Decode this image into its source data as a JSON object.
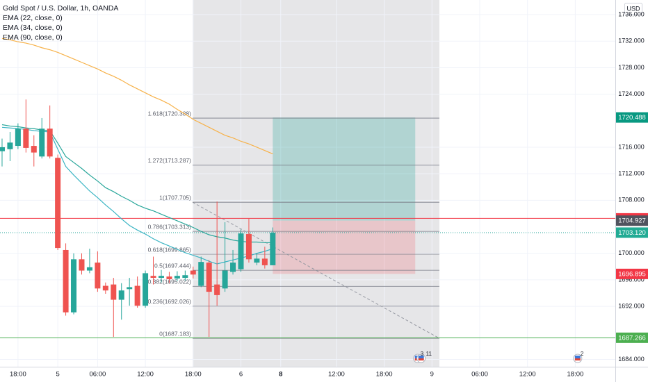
{
  "chart_data": {
    "type": "candlestick",
    "title": "Gold Spot / U.S. Dollar, 1h, OANDA",
    "currency": "USD",
    "x": [
      0,
      1,
      2,
      3,
      4,
      5,
      6,
      7,
      8,
      9,
      10,
      11,
      12,
      13,
      14,
      15,
      16,
      17,
      18,
      19,
      20,
      21,
      22,
      23,
      24,
      25,
      26,
      27,
      28,
      29,
      30,
      31,
      32,
      33,
      34
    ],
    "open": [
      1715.4,
      1715.7,
      1716.2,
      1718.8,
      1716.2,
      1714.6,
      1718.8,
      1714.4,
      1700.5,
      1691.1,
      1699.1,
      1697.4,
      1698.6,
      1695.1,
      1695.3,
      1693.0,
      1694.6,
      1695.1,
      1692.1,
      1696.6,
      1696.3,
      1696.5,
      1696.2,
      1696.3,
      1697.4,
      1695.1,
      1698.6,
      1695.3,
      1694.7,
      1697.2,
      1697.6,
      1702.9,
      1698.6,
      1699.2,
      1698.2
    ],
    "high": [
      1717.3,
      1718.3,
      1719.6,
      1723.2,
      1717.8,
      1720.4,
      1722.3,
      1714.9,
      1701.5,
      1700.0,
      1700.0,
      1700.7,
      1700.3,
      1695.6,
      1696.3,
      1695.5,
      1696.3,
      1696.5,
      1697.4,
      1699.5,
      1697.5,
      1697.2,
      1697.3,
      1697.4,
      1698.0,
      1699.5,
      1699.0,
      1707.8,
      1704.7,
      1700.5,
      1703.6,
      1705.2,
      1700.0,
      1701.0,
      1703.9
    ],
    "low": [
      1713.1,
      1713.9,
      1715.7,
      1715.2,
      1713.1,
      1714.3,
      1714.3,
      1700.5,
      1690.6,
      1690.8,
      1696.8,
      1697.0,
      1694.2,
      1693.9,
      1687.4,
      1690.0,
      1692.1,
      1691.8,
      1691.8,
      1695.3,
      1695.6,
      1695.5,
      1695.8,
      1695.9,
      1696.2,
      1694.9,
      1687.4,
      1692.1,
      1694.2,
      1696.8,
      1697.2,
      1698.6,
      1698.2,
      1697.7,
      1698.2
    ],
    "close": [
      1716.0,
      1716.7,
      1718.8,
      1715.9,
      1715.2,
      1718.8,
      1714.6,
      1700.8,
      1691.1,
      1699.1,
      1697.4,
      1697.9,
      1694.7,
      1694.4,
      1693.0,
      1694.4,
      1694.9,
      1692.1,
      1697.0,
      1696.3,
      1696.6,
      1696.1,
      1696.6,
      1696.7,
      1696.8,
      1698.7,
      1694.2,
      1693.7,
      1697.4,
      1698.6,
      1703.0,
      1699.1,
      1699.2,
      1698.2,
      1703.1
    ],
    "up_color": "#26a69a",
    "down_color": "#ef5350",
    "indicators": [
      {
        "name": "EMA (22, close, 0)",
        "color": "#3bb5c4",
        "values": [
          1719.0,
          1718.9,
          1718.8,
          1718.7,
          1718.5,
          1718.4,
          1718.3,
          1715.7,
          1713.1,
          1711.8,
          1710.6,
          1709.4,
          1708.4,
          1707.3,
          1706.3,
          1705.2,
          1704.2,
          1703.5,
          1702.9,
          1702.2,
          1701.6,
          1701.1,
          1700.6,
          1700.1,
          1699.7,
          1699.3,
          1698.8,
          1698.4,
          1698.7,
          1699.0,
          1699.3,
          1699.6,
          1700.0,
          1700.3,
          1700.7
        ]
      },
      {
        "name": "EMA (34, close, 0)",
        "color": "#2aa79b",
        "values": [
          1719.4,
          1719.2,
          1719.1,
          1718.9,
          1718.8,
          1718.6,
          1718.5,
          1716.6,
          1714.6,
          1713.7,
          1712.8,
          1711.8,
          1710.9,
          1709.9,
          1709.3,
          1708.6,
          1708.0,
          1707.3,
          1706.8,
          1706.4,
          1705.9,
          1705.4,
          1704.9,
          1704.4,
          1703.9,
          1703.3,
          1702.8,
          1702.5,
          1702.3,
          1702.0,
          1701.8,
          1701.7,
          1701.7,
          1701.6,
          1701.6
        ]
      },
      {
        "name": "EMA (90, close, 0)",
        "color": "#f7b24a",
        "values": [
          1732.4,
          1732.2,
          1731.9,
          1731.7,
          1731.4,
          1731.0,
          1730.7,
          1730.3,
          1729.8,
          1729.3,
          1728.8,
          1728.3,
          1727.8,
          1727.2,
          1726.7,
          1726.1,
          1725.4,
          1724.8,
          1724.2,
          1723.6,
          1723.1,
          1722.5,
          1721.7,
          1721.0,
          1720.2,
          1719.6,
          1719.0,
          1718.4,
          1717.8,
          1717.4,
          1716.9,
          1716.5,
          1716.0,
          1715.5,
          1715.0
        ]
      }
    ],
    "xlim": [
      -0.26,
      77.03
    ],
    "ylim": [
      1682.9,
      1738.2
    ],
    "xticks": [
      {
        "value": 2,
        "label": "18:00"
      },
      {
        "value": 7,
        "label": "5"
      },
      {
        "value": 12,
        "label": "06:00"
      },
      {
        "value": 18,
        "label": "12:00"
      },
      {
        "value": 24,
        "label": "18:00"
      },
      {
        "value": 30,
        "label": "6"
      },
      {
        "value": 35,
        "label": "8"
      },
      {
        "value": 42,
        "label": "12:00"
      },
      {
        "value": 48,
        "label": "18:00"
      },
      {
        "value": 54,
        "label": "9"
      },
      {
        "value": 60,
        "label": "06:00"
      },
      {
        "value": 66,
        "label": "12:00"
      },
      {
        "value": 72,
        "label": "18:00"
      }
    ],
    "yticks": [
      {
        "value": 1736,
        "label": "1736.000"
      },
      {
        "value": 1732,
        "label": "1732.000"
      },
      {
        "value": 1728,
        "label": "1728.000"
      },
      {
        "value": 1724,
        "label": "1724.000"
      },
      {
        "value": 1716,
        "label": "1716.000"
      },
      {
        "value": 1712,
        "label": "1712.000"
      },
      {
        "value": 1708,
        "label": "1708.000"
      },
      {
        "value": 1700,
        "label": "1700.000"
      },
      {
        "value": 1696,
        "label": "1696.000"
      },
      {
        "value": 1692,
        "label": "1692.000"
      },
      {
        "value": 1684,
        "label": "1684.000"
      }
    ],
    "grid": true,
    "fib": {
      "x": [
        23.93,
        54.93
      ],
      "color": "#787b86",
      "levels": [
        {
          "label": "1.618(1720.388)",
          "value": 1720.388
        },
        {
          "label": "1.272(1713.287)",
          "value": 1713.287
        },
        {
          "label": "1(1707.705)",
          "value": 1707.705
        },
        {
          "label": "0.786(1703.313)",
          "value": 1703.313
        },
        {
          "label": "0.618(1699.865)",
          "value": 1699.865
        },
        {
          "label": "0.5(1697.444)",
          "value": 1697.444
        },
        {
          "label": "0.382(1695.022)",
          "value": 1695.022
        },
        {
          "label": "0.236(1692.026)",
          "value": 1692.026
        },
        {
          "label": "0(1687.183)",
          "value": 1687.183
        }
      ]
    },
    "position": {
      "x": [
        34,
        51.9
      ],
      "target": 1720.488,
      "entry": 1704.927,
      "stop": 1696.895
    },
    "hlines": [
      {
        "value": 1705.272,
        "color": "#f23645"
      },
      {
        "value": 1703.12,
        "color": "#26a69a"
      },
      {
        "value": 1687.266,
        "color": "#4caf50"
      }
    ],
    "price_labels": [
      {
        "value": 1720.488,
        "color": "#089981"
      },
      {
        "value": 1705.272,
        "color": "#f23645"
      },
      {
        "value": 1704.927,
        "color": "#50535e"
      },
      {
        "value": 1703.12,
        "label": "1703.120",
        "color": "#22ab94"
      },
      {
        "value": 1696.895,
        "color": "#f23645"
      },
      {
        "value": 1687.266,
        "color": "#4caf50"
      }
    ],
    "events": [
      {
        "x": 52.2,
        "labels": [
          "3",
          "11"
        ]
      },
      {
        "x": 72.3,
        "labels": [
          "2"
        ]
      }
    ]
  }
}
